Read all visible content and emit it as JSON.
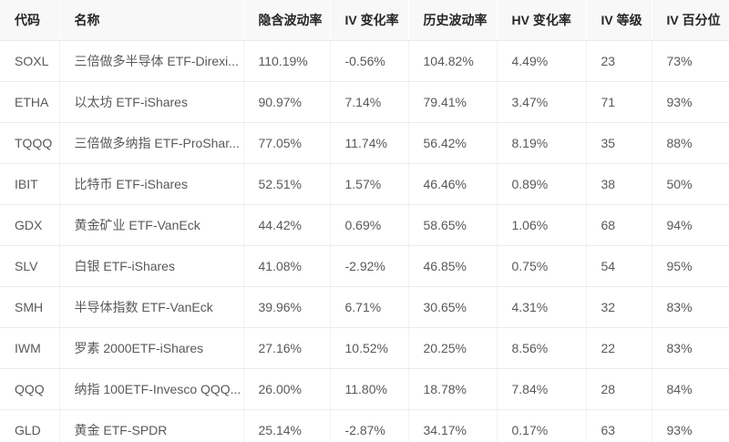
{
  "table": {
    "columns": [
      {
        "key": "code",
        "label": "代码"
      },
      {
        "key": "name",
        "label": "名称"
      },
      {
        "key": "iv",
        "label": "隐含波动率"
      },
      {
        "key": "iv_change",
        "label": "IV 变化率"
      },
      {
        "key": "hv",
        "label": "历史波动率"
      },
      {
        "key": "hv_change",
        "label": "HV 变化率"
      },
      {
        "key": "iv_rank",
        "label": "IV 等级"
      },
      {
        "key": "iv_percentile",
        "label": "IV 百分位"
      }
    ],
    "rows": [
      {
        "code": "SOXL",
        "name": "三倍做多半导体 ETF-Direxi...",
        "iv": "110.19%",
        "iv_change": "-0.56%",
        "hv": "104.82%",
        "hv_change": "4.49%",
        "iv_rank": "23",
        "iv_percentile": "73%"
      },
      {
        "code": "ETHA",
        "name": "以太坊 ETF-iShares",
        "iv": "90.97%",
        "iv_change": "7.14%",
        "hv": "79.41%",
        "hv_change": "3.47%",
        "iv_rank": "71",
        "iv_percentile": "93%"
      },
      {
        "code": "TQQQ",
        "name": "三倍做多纳指 ETF-ProShar...",
        "iv": "77.05%",
        "iv_change": "11.74%",
        "hv": "56.42%",
        "hv_change": "8.19%",
        "iv_rank": "35",
        "iv_percentile": "88%"
      },
      {
        "code": "IBIT",
        "name": "比特币 ETF-iShares",
        "iv": "52.51%",
        "iv_change": "1.57%",
        "hv": "46.46%",
        "hv_change": "0.89%",
        "iv_rank": "38",
        "iv_percentile": "50%"
      },
      {
        "code": "GDX",
        "name": "黄金矿业 ETF-VanEck",
        "iv": "44.42%",
        "iv_change": "0.69%",
        "hv": "58.65%",
        "hv_change": "1.06%",
        "iv_rank": "68",
        "iv_percentile": "94%"
      },
      {
        "code": "SLV",
        "name": "白银 ETF-iShares",
        "iv": "41.08%",
        "iv_change": "-2.92%",
        "hv": "46.85%",
        "hv_change": "0.75%",
        "iv_rank": "54",
        "iv_percentile": "95%"
      },
      {
        "code": "SMH",
        "name": "半导体指数 ETF-VanEck",
        "iv": "39.96%",
        "iv_change": "6.71%",
        "hv": "30.65%",
        "hv_change": "4.31%",
        "iv_rank": "32",
        "iv_percentile": "83%"
      },
      {
        "code": "IWM",
        "name": "罗素 2000ETF-iShares",
        "iv": "27.16%",
        "iv_change": "10.52%",
        "hv": "20.25%",
        "hv_change": "8.56%",
        "iv_rank": "22",
        "iv_percentile": "83%"
      },
      {
        "code": "QQQ",
        "name": "纳指 100ETF-Invesco QQQ...",
        "iv": "26.00%",
        "iv_change": "11.80%",
        "hv": "18.78%",
        "hv_change": "7.84%",
        "iv_rank": "28",
        "iv_percentile": "84%"
      },
      {
        "code": "GLD",
        "name": "黄金 ETF-SPDR",
        "iv": "25.14%",
        "iv_change": "-2.87%",
        "hv": "34.17%",
        "hv_change": "0.17%",
        "iv_rank": "63",
        "iv_percentile": "93%"
      }
    ]
  },
  "colors": {
    "header_bg": "#f8f8f8",
    "header_text": "#262626",
    "body_text": "#595959",
    "row_border": "#ececec",
    "column_border": "#f2f2f2"
  }
}
